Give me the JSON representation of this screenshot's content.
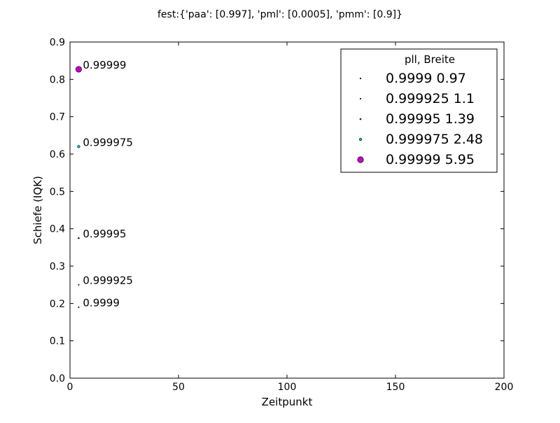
{
  "chart_data": {
    "type": "scatter",
    "title": "fest:{'paa': [0.997], 'pml': [0.0005], 'pmm': [0.9]}",
    "xlabel": "Zeitpunkt",
    "ylabel": "Schiefe (IQK)",
    "xlim": [
      0,
      200
    ],
    "ylim": [
      0,
      0.9
    ],
    "x_ticks": [
      0,
      50,
      100,
      150,
      200
    ],
    "y_ticks": [
      0.0,
      0.1,
      0.2,
      0.3,
      0.4,
      0.5,
      0.6,
      0.7,
      0.8,
      0.9
    ],
    "grid": false,
    "legend": {
      "placement": "top-right",
      "title": "pll,    Breite"
    },
    "series": [
      {
        "name": "0.9999  0.97",
        "label": "0.9999",
        "color": "#0000ff",
        "size": 0.97,
        "points": [
          {
            "x": 4,
            "y": 0.19
          }
        ]
      },
      {
        "name": "0.999925  1.1",
        "label": "0.999925",
        "color": "#008000",
        "size": 1.1,
        "points": [
          {
            "x": 4,
            "y": 0.25
          }
        ]
      },
      {
        "name": "0.99995  1.39",
        "label": "0.99995",
        "color": "#ff0000",
        "size": 1.39,
        "points": [
          {
            "x": 4,
            "y": 0.375
          }
        ]
      },
      {
        "name": "0.999975  2.48",
        "label": "0.999975",
        "color": "#00bfbf",
        "size": 2.48,
        "points": [
          {
            "x": 4,
            "y": 0.62
          }
        ]
      },
      {
        "name": "0.99999  5.95",
        "label": "0.99999",
        "color": "#bf00bf",
        "size": 5.95,
        "points": [
          {
            "x": 4,
            "y": 0.827
          }
        ]
      }
    ]
  }
}
